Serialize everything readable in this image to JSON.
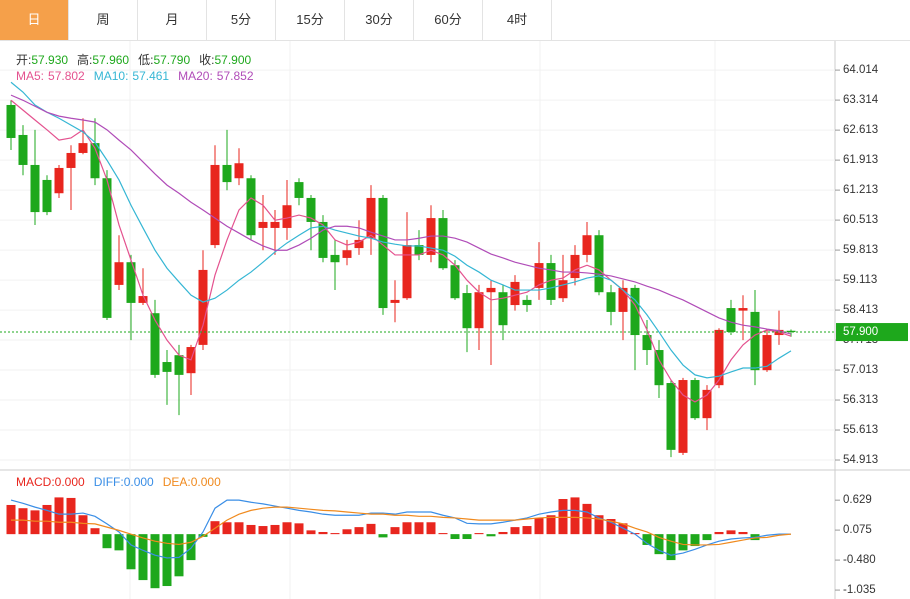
{
  "tabs": [
    "日",
    "周",
    "月",
    "5分",
    "15分",
    "30分",
    "60分",
    "4时"
  ],
  "info": [
    {
      "label": "开:",
      "value": "57.930"
    },
    {
      "label": "高:",
      "value": "57.960"
    },
    {
      "label": "低:",
      "value": "57.790"
    },
    {
      "label": "收:",
      "value": "57.900"
    }
  ],
  "chart_data": [
    {
      "type": "candlestick",
      "up_color": "#e8261e",
      "down_color": "#1ea81c",
      "grid": true,
      "ylim": [
        54.68,
        64.67
      ],
      "yticks": [
        64.014,
        63.314,
        62.613,
        61.913,
        61.213,
        60.513,
        59.813,
        59.113,
        58.413,
        57.713,
        57.013,
        56.313,
        55.613,
        54.913
      ],
      "last_price": {
        "value": 57.9,
        "label": "57.900"
      },
      "open": [
        63.2,
        62.5,
        61.8,
        61.45,
        61.14,
        61.73,
        62.08,
        62.31,
        61.49,
        59.0,
        59.53,
        58.58,
        58.34,
        57.2,
        57.36,
        56.94,
        57.6,
        59.93,
        61.8,
        61.49,
        61.49,
        60.33,
        60.33,
        60.33,
        61.4,
        61.03,
        60.47,
        59.7,
        59.63,
        59.86,
        60.09,
        61.03,
        58.58,
        58.69,
        59.93,
        59.7,
        60.56,
        59.46,
        58.81,
        57.99,
        58.83,
        58.83,
        58.53,
        58.65,
        58.93,
        59.51,
        58.69,
        59.16,
        59.7,
        60.16,
        58.83,
        58.37,
        58.93,
        57.83,
        57.48,
        56.71,
        55.08,
        56.78,
        55.89,
        56.66,
        58.46,
        58.4,
        58.37,
        57.01,
        57.83,
        57.93
      ],
      "high": [
        63.31,
        62.73,
        62.62,
        61.56,
        61.8,
        62.26,
        62.89,
        62.89,
        61.68,
        60.16,
        59.7,
        59.39,
        58.65,
        57.48,
        57.6,
        57.6,
        59.81,
        62.26,
        62.62,
        62.19,
        61.56,
        61.1,
        60.75,
        61.45,
        61.49,
        61.1,
        60.63,
        60.05,
        60.05,
        60.51,
        61.33,
        61.1,
        59.11,
        60.7,
        60.28,
        60.86,
        60.75,
        59.58,
        59.0,
        59.0,
        59.11,
        59.0,
        59.23,
        58.76,
        60.0,
        59.7,
        59.7,
        59.93,
        60.47,
        60.28,
        59.0,
        59.11,
        59.0,
        58.18,
        57.71,
        56.78,
        56.83,
        56.83,
        56.66,
        57.99,
        58.65,
        58.76,
        58.88,
        57.95,
        58.4,
        57.96
      ],
      "low": [
        62.15,
        61.56,
        60.4,
        60.63,
        61.03,
        60.75,
        62.05,
        61.33,
        58.18,
        58.88,
        57.71,
        58.53,
        56.83,
        56.2,
        55.96,
        56.43,
        57.48,
        59.86,
        61.21,
        61.33,
        60.05,
        59.81,
        59.7,
        60.05,
        60.86,
        59.81,
        59.53,
        58.88,
        59.46,
        59.7,
        59.7,
        58.3,
        58.13,
        58.65,
        59.58,
        59.53,
        59.35,
        58.65,
        57.43,
        57.48,
        57.13,
        57.71,
        58.4,
        58.37,
        58.65,
        58.53,
        58.6,
        58.99,
        59.53,
        58.76,
        58.06,
        57.71,
        57.01,
        57.13,
        56.36,
        54.98,
        55.03,
        55.85,
        55.61,
        56.59,
        57.83,
        57.71,
        56.66,
        56.97,
        57.6,
        57.79
      ],
      "close": [
        62.43,
        61.8,
        60.7,
        60.7,
        61.73,
        62.08,
        62.31,
        61.49,
        58.23,
        59.53,
        58.58,
        58.74,
        56.9,
        56.97,
        56.9,
        57.55,
        59.35,
        61.8,
        61.4,
        61.84,
        60.16,
        60.47,
        60.47,
        60.86,
        61.03,
        60.47,
        59.63,
        59.53,
        59.81,
        60.05,
        61.03,
        58.46,
        58.65,
        59.93,
        59.7,
        60.56,
        59.39,
        58.69,
        57.99,
        58.83,
        58.93,
        58.06,
        59.07,
        58.53,
        59.51,
        58.65,
        59.11,
        59.7,
        60.16,
        58.83,
        58.37,
        58.93,
        57.83,
        57.48,
        56.66,
        55.15,
        56.78,
        55.89,
        56.55,
        57.95,
        57.9,
        58.46,
        57.01,
        57.83,
        57.95,
        57.9
      ],
      "lines": [
        {
          "name": "MA5:",
          "color": "#e4528f",
          "values": [
            63.31,
            63.08,
            62.85,
            62.62,
            62.38,
            62.43,
            62.62,
            62.19,
            61.45,
            60.4,
            59.58,
            58.76,
            58.18,
            57.71,
            57.36,
            57.25,
            58.06,
            59.23,
            60.05,
            60.75,
            61.03,
            60.86,
            60.51,
            60.56,
            60.63,
            60.56,
            60.4,
            60.05,
            59.93,
            60.0,
            60.16,
            59.93,
            59.7,
            59.7,
            59.7,
            59.81,
            59.7,
            59.46,
            59.11,
            58.83,
            58.65,
            58.69,
            58.76,
            58.83,
            59.0,
            59.11,
            59.16,
            59.35,
            59.46,
            59.35,
            59.11,
            58.88,
            58.53,
            57.95,
            57.25,
            56.78,
            56.43,
            56.27,
            56.43,
            56.78,
            57.25,
            57.6,
            57.83,
            57.95,
            57.9,
            57.802
          ]
        },
        {
          "name": "MA10:",
          "color": "#35b6d4",
          "values": [
            63.73,
            63.5,
            63.2,
            63.03,
            62.89,
            62.73,
            62.57,
            62.33,
            61.91,
            61.45,
            60.86,
            60.33,
            59.81,
            59.39,
            59.07,
            58.76,
            58.6,
            58.69,
            58.88,
            59.11,
            59.3,
            59.53,
            59.77,
            59.98,
            60.16,
            60.33,
            60.37,
            60.28,
            60.21,
            60.14,
            60.09,
            60.0,
            59.95,
            59.91,
            59.91,
            59.86,
            59.81,
            59.67,
            59.46,
            59.3,
            59.11,
            59.0,
            58.88,
            58.88,
            58.88,
            58.93,
            59.0,
            59.07,
            59.16,
            59.21,
            59.11,
            58.88,
            58.65,
            58.3,
            57.9,
            57.48,
            57.13,
            56.9,
            56.83,
            56.87,
            56.97,
            57.06,
            57.06,
            57.1,
            57.29,
            57.461
          ]
        },
        {
          "name": "MA20:",
          "color": "#b04cb8",
          "values": [
            63.43,
            63.31,
            63.17,
            63.03,
            62.94,
            62.89,
            62.85,
            62.8,
            62.62,
            62.38,
            62.15,
            61.87,
            61.59,
            61.33,
            61.14,
            60.93,
            60.75,
            60.56,
            60.37,
            60.21,
            60.05,
            59.91,
            59.81,
            59.81,
            59.93,
            60.09,
            60.28,
            60.37,
            60.37,
            60.33,
            60.23,
            60.14,
            60.05,
            60.05,
            60.09,
            60.14,
            60.14,
            60.09,
            60.0,
            59.86,
            59.72,
            59.63,
            59.53,
            59.46,
            59.39,
            59.35,
            59.3,
            59.3,
            59.28,
            59.25,
            59.21,
            59.14,
            59.07,
            58.97,
            58.88,
            58.76,
            58.65,
            58.51,
            58.37,
            58.23,
            58.13,
            58.06,
            58.02,
            57.97,
            57.93,
            57.852
          ]
        }
      ]
    },
    {
      "type": "macd",
      "ylim": [
        -1.2,
        1.15
      ],
      "yticks": [
        0.629,
        0.075,
        {
          "value": -0.48,
          "label": "-0.480"
        },
        -1.035
      ],
      "up_color": "#e8261e",
      "down_color": "#1ea81c",
      "histogram": {
        "name": "MACD:",
        "legend_value": "0.000",
        "color": "#e8261e",
        "values": [
          0.54,
          0.48,
          0.44,
          0.54,
          0.68,
          0.67,
          0.35,
          0.11,
          -0.26,
          -0.3,
          -0.65,
          -0.85,
          -1.0,
          -0.96,
          -0.78,
          -0.48,
          -0.05,
          0.24,
          0.22,
          0.22,
          0.17,
          0.15,
          0.17,
          0.22,
          0.2,
          0.07,
          0.04,
          0.02,
          0.09,
          0.13,
          0.19,
          -0.06,
          0.13,
          0.22,
          0.22,
          0.22,
          0.02,
          -0.09,
          -0.09,
          0.02,
          -0.04,
          0.04,
          0.13,
          0.15,
          0.3,
          0.35,
          0.65,
          0.68,
          0.56,
          0.35,
          0.28,
          0.2,
          0.02,
          -0.2,
          -0.37,
          -0.48,
          -0.3,
          -0.22,
          -0.11,
          0.04,
          0.07,
          0.04,
          -0.11,
          0.0,
          0.0,
          0.0
        ]
      },
      "lines": [
        {
          "name": "DIFF:",
          "legend_value": "0.000",
          "color": "#3a8ee6",
          "values": [
            0.63,
            0.57,
            0.5,
            0.44,
            0.37,
            0.37,
            0.39,
            0.33,
            0.19,
            0.04,
            -0.2,
            -0.3,
            -0.39,
            -0.44,
            -0.43,
            -0.26,
            0.04,
            0.48,
            0.63,
            0.63,
            0.59,
            0.56,
            0.52,
            0.48,
            0.44,
            0.41,
            0.37,
            0.35,
            0.35,
            0.35,
            0.39,
            0.39,
            0.37,
            0.41,
            0.41,
            0.41,
            0.35,
            0.3,
            0.2,
            0.19,
            0.19,
            0.22,
            0.26,
            0.3,
            0.37,
            0.41,
            0.44,
            0.44,
            0.41,
            0.3,
            0.22,
            0.11,
            0.0,
            -0.17,
            -0.3,
            -0.39,
            -0.35,
            -0.28,
            -0.2,
            -0.13,
            -0.09,
            -0.07,
            -0.06,
            -0.02,
            0.0,
            0.0
          ]
        },
        {
          "name": "DEA:",
          "legend_value": "0.000",
          "color": "#f08a1e",
          "values": [
            0.26,
            0.26,
            0.24,
            0.24,
            0.22,
            0.22,
            0.2,
            0.19,
            0.13,
            0.07,
            0.0,
            -0.07,
            -0.13,
            -0.17,
            -0.19,
            -0.15,
            -0.04,
            0.11,
            0.26,
            0.37,
            0.44,
            0.48,
            0.5,
            0.5,
            0.48,
            0.46,
            0.44,
            0.43,
            0.41,
            0.39,
            0.37,
            0.37,
            0.35,
            0.35,
            0.33,
            0.33,
            0.31,
            0.3,
            0.28,
            0.26,
            0.26,
            0.26,
            0.26,
            0.28,
            0.3,
            0.31,
            0.31,
            0.31,
            0.3,
            0.28,
            0.24,
            0.19,
            0.11,
            0.04,
            -0.06,
            -0.13,
            -0.19,
            -0.2,
            -0.2,
            -0.19,
            -0.15,
            -0.11,
            -0.07,
            -0.06,
            -0.02,
            0.0
          ]
        }
      ]
    }
  ]
}
